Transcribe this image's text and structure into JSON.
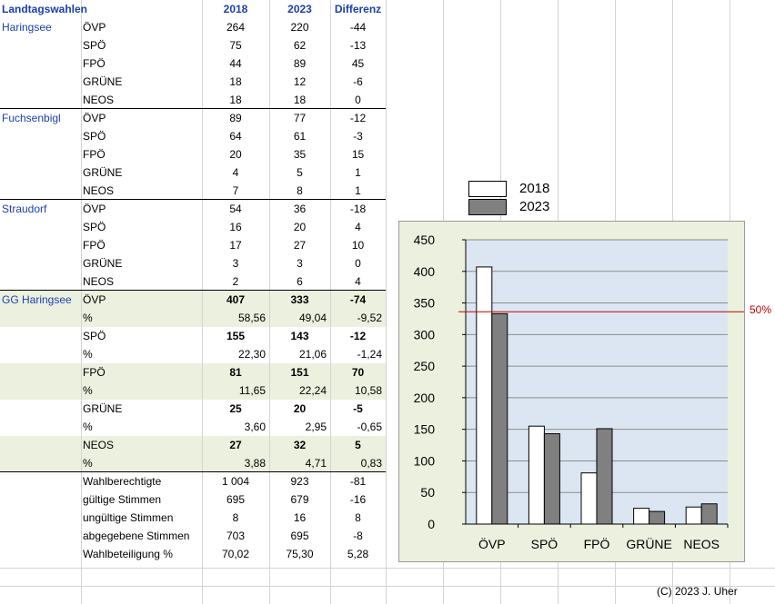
{
  "header": {
    "title": "Landtagswahlen",
    "y2018": "2018",
    "y2023": "2023",
    "diff": "Differenz"
  },
  "sections": [
    {
      "name": "Haringsee",
      "rows": [
        {
          "party": "ÖVP",
          "a": "264",
          "b": "220",
          "d": "-44"
        },
        {
          "party": "SPÖ",
          "a": "75",
          "b": "62",
          "d": "-13"
        },
        {
          "party": "FPÖ",
          "a": "44",
          "b": "89",
          "d": "45"
        },
        {
          "party": "GRÜNE",
          "a": "18",
          "b": "12",
          "d": "-6"
        },
        {
          "party": "NEOS",
          "a": "18",
          "b": "18",
          "d": "0"
        }
      ]
    },
    {
      "name": "Fuchsenbigl",
      "rows": [
        {
          "party": "ÖVP",
          "a": "89",
          "b": "77",
          "d": "-12"
        },
        {
          "party": "SPÖ",
          "a": "64",
          "b": "61",
          "d": "-3"
        },
        {
          "party": "FPÖ",
          "a": "20",
          "b": "35",
          "d": "15"
        },
        {
          "party": "GRÜNE",
          "a": "4",
          "b": "5",
          "d": "1"
        },
        {
          "party": "NEOS",
          "a": "7",
          "b": "8",
          "d": "1"
        }
      ]
    },
    {
      "name": "Straudorf",
      "rows": [
        {
          "party": "ÖVP",
          "a": "54",
          "b": "36",
          "d": "-18"
        },
        {
          "party": "SPÖ",
          "a": "16",
          "b": "20",
          "d": "4"
        },
        {
          "party": "FPÖ",
          "a": "17",
          "b": "27",
          "d": "10"
        },
        {
          "party": "GRÜNE",
          "a": "3",
          "b": "3",
          "d": "0"
        },
        {
          "party": "NEOS",
          "a": "2",
          "b": "6",
          "d": "4"
        }
      ]
    }
  ],
  "gg": {
    "name": "GG Haringsee",
    "rows": [
      {
        "party": "ÖVP",
        "a": "407",
        "b": "333",
        "d": "-74",
        "pa": "58,56",
        "pb": "49,04",
        "pd": "-9,52"
      },
      {
        "party": "SPÖ",
        "a": "155",
        "b": "143",
        "d": "-12",
        "pa": "22,30",
        "pb": "21,06",
        "pd": "-1,24"
      },
      {
        "party": "FPÖ",
        "a": "81",
        "b": "151",
        "d": "70",
        "pa": "11,65",
        "pb": "22,24",
        "pd": "10,58"
      },
      {
        "party": "GRÜNE",
        "a": "25",
        "b": "20",
        "d": "-5",
        "pa": "3,60",
        "pb": "2,95",
        "pd": "-0,65"
      },
      {
        "party": "NEOS",
        "a": "27",
        "b": "32",
        "d": "5",
        "pa": "3,88",
        "pb": "4,71",
        "pd": "0,83"
      }
    ],
    "pct_label": "%"
  },
  "stats": [
    {
      "label": "Wahlberechtigte",
      "a": "1 004",
      "b": "923",
      "d": "-81"
    },
    {
      "label": "gültige Stimmen",
      "a": "695",
      "b": "679",
      "d": "-16"
    },
    {
      "label": "ungültige Stimmen",
      "a": "8",
      "b": "16",
      "d": "8"
    },
    {
      "label": "abgegebene Stimmen",
      "a": "703",
      "b": "695",
      "d": "-8"
    },
    {
      "label": "Wahlbeteiligung %",
      "a": "70,02",
      "b": "75,30",
      "d": "5,28"
    }
  ],
  "chart_data": {
    "type": "bar",
    "categories": [
      "ÖVP",
      "SPÖ",
      "FPÖ",
      "GRÜNE",
      "NEOS"
    ],
    "series": [
      {
        "name": "2018",
        "values": [
          407,
          155,
          81,
          25,
          27
        ],
        "color": "#ffffff"
      },
      {
        "name": "2023",
        "values": [
          333,
          143,
          151,
          20,
          32
        ],
        "color": "#808080"
      }
    ],
    "ylim": [
      0,
      450
    ],
    "yticks": [
      0,
      50,
      100,
      150,
      200,
      250,
      300,
      350,
      400,
      450
    ],
    "reference_line": {
      "value": 336,
      "label": "50%",
      "color": "#c00000"
    },
    "legend_position": "top-left, above chart",
    "background": "#dce6f2",
    "grid": true
  },
  "footer": {
    "copyright": "(C) 2023 J. Uher"
  }
}
